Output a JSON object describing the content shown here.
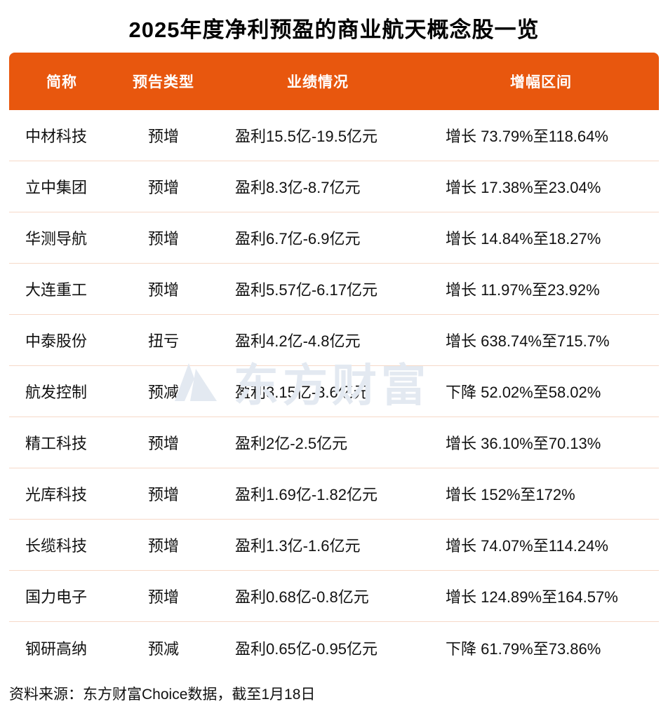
{
  "title": "2025年度净利预盈的商业航天概念股一览",
  "watermark": {
    "text": "东方财富"
  },
  "footer": "资料来源：东方财富Choice数据，截至1月18日",
  "colors": {
    "header_bg": "#E8570E",
    "header_text": "#FFFFFF",
    "row_divider": "#F6D9C8",
    "body_text": "#111111",
    "watermark": "#E3E9F1"
  },
  "chart_data": {
    "type": "table",
    "title": "2025年度净利预盈的商业航天概念股一览",
    "columns": [
      "简称",
      "预告类型",
      "业绩情况",
      "增幅区间"
    ],
    "rows": [
      [
        "中材科技",
        "预增",
        "盈利15.5亿-19.5亿元",
        "增长 73.79%至118.64%"
      ],
      [
        "立中集团",
        "预增",
        "盈利8.3亿-8.7亿元",
        "增长 17.38%至23.04%"
      ],
      [
        "华测导航",
        "预增",
        "盈利6.7亿-6.9亿元",
        "增长 14.84%至18.27%"
      ],
      [
        "大连重工",
        "预增",
        "盈利5.57亿-6.17亿元",
        "增长 11.97%至23.92%"
      ],
      [
        "中泰股份",
        "扭亏",
        "盈利4.2亿-4.8亿元",
        "增长 638.74%至715.7%"
      ],
      [
        "航发控制",
        "预减",
        "盈利3.15亿-3.6亿元",
        "下降 52.02%至58.02%"
      ],
      [
        "精工科技",
        "预增",
        "盈利2亿-2.5亿元",
        "增长 36.10%至70.13%"
      ],
      [
        "光库科技",
        "预增",
        "盈利1.69亿-1.82亿元",
        "增长 152%至172%"
      ],
      [
        "长缆科技",
        "预增",
        "盈利1.3亿-1.6亿元",
        "增长 74.07%至114.24%"
      ],
      [
        "国力电子",
        "预增",
        "盈利0.68亿-0.8亿元",
        "增长 124.89%至164.57%"
      ],
      [
        "钢研高纳",
        "预减",
        "盈利0.65亿-0.95亿元",
        "下降 61.79%至73.86%"
      ]
    ],
    "source": "资料来源：东方财富Choice数据，截至1月18日"
  }
}
